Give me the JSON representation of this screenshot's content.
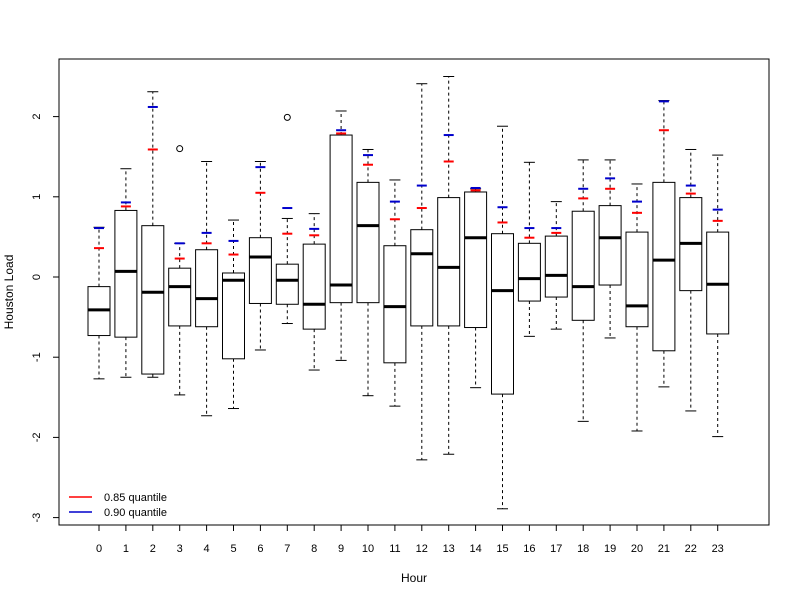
{
  "chart_data": {
    "type": "box",
    "title": "",
    "xlabel": "Hour",
    "ylabel": "Houston Load",
    "ylim": [
      -3.1,
      2.7
    ],
    "yticks": [
      "-3",
      "-2",
      "-1",
      "0",
      "1",
      "2"
    ],
    "ytick_values": [
      -3,
      -2,
      -1,
      0,
      1,
      2
    ],
    "grid": false,
    "legend_position": "bottom-left",
    "colors": {
      "q85": "#ff0000",
      "q90": "#0000cc",
      "box": "#000000"
    },
    "legend": [
      {
        "label": "0.85 quantile",
        "color": "#ff0000"
      },
      {
        "label": "0.90 quantile",
        "color": "#0000cc"
      }
    ],
    "categories": [
      "0",
      "1",
      "2",
      "3",
      "4",
      "5",
      "6",
      "7",
      "8",
      "9",
      "10",
      "11",
      "12",
      "13",
      "14",
      "15",
      "16",
      "17",
      "18",
      "19",
      "20",
      "21",
      "22",
      "23"
    ],
    "boxes": [
      {
        "min": -1.27,
        "q1": -0.73,
        "median": -0.41,
        "q3": -0.12,
        "max": 0.62,
        "outliers": [],
        "q85": 0.36,
        "q90": 0.61
      },
      {
        "min": -1.25,
        "q1": -0.75,
        "median": 0.07,
        "q3": 0.83,
        "max": 1.35,
        "outliers": [],
        "q85": 0.88,
        "q90": 0.93
      },
      {
        "min": -1.25,
        "q1": -1.21,
        "median": -0.19,
        "q3": 0.64,
        "max": 2.31,
        "outliers": [],
        "q85": 1.59,
        "q90": 2.12
      },
      {
        "min": -1.47,
        "q1": -0.61,
        "median": -0.12,
        "q3": 0.11,
        "max": 0.42,
        "outliers": [
          1.6
        ],
        "q85": 0.23,
        "q90": 0.42
      },
      {
        "min": -1.73,
        "q1": -0.62,
        "median": -0.27,
        "q3": 0.34,
        "max": 1.44,
        "outliers": [],
        "q85": 0.42,
        "q90": 0.55
      },
      {
        "min": -1.64,
        "q1": -1.02,
        "median": -0.04,
        "q3": 0.05,
        "max": 0.71,
        "outliers": [],
        "q85": 0.28,
        "q90": 0.45
      },
      {
        "min": -0.91,
        "q1": -0.33,
        "median": 0.25,
        "q3": 0.49,
        "max": 1.44,
        "outliers": [],
        "q85": 1.05,
        "q90": 1.37
      },
      {
        "min": -0.58,
        "q1": -0.34,
        "median": -0.04,
        "q3": 0.16,
        "max": 0.73,
        "outliers": [
          1.99
        ],
        "q85": 0.54,
        "q90": 0.86
      },
      {
        "min": -1.16,
        "q1": -0.65,
        "median": -0.34,
        "q3": 0.41,
        "max": 0.79,
        "outliers": [],
        "q85": 0.52,
        "q90": 0.6
      },
      {
        "min": -1.04,
        "q1": -0.32,
        "median": -0.1,
        "q3": 1.77,
        "max": 2.07,
        "outliers": [],
        "q85": 1.79,
        "q90": 1.83
      },
      {
        "min": -1.48,
        "q1": -0.32,
        "median": 0.64,
        "q3": 1.18,
        "max": 1.59,
        "outliers": [],
        "q85": 1.4,
        "q90": 1.52
      },
      {
        "min": -1.61,
        "q1": -1.07,
        "median": -0.37,
        "q3": 0.39,
        "max": 1.21,
        "outliers": [],
        "q85": 0.72,
        "q90": 0.94
      },
      {
        "min": -2.28,
        "q1": -0.61,
        "median": 0.29,
        "q3": 0.59,
        "max": 2.41,
        "outliers": [],
        "q85": 0.86,
        "q90": 1.14
      },
      {
        "min": -2.21,
        "q1": -0.61,
        "median": 0.12,
        "q3": 0.99,
        "max": 2.5,
        "outliers": [],
        "q85": 1.44,
        "q90": 1.77
      },
      {
        "min": -1.38,
        "q1": -0.63,
        "median": 0.49,
        "q3": 1.06,
        "max": 1.1,
        "outliers": [],
        "q85": 1.08,
        "q90": 1.11
      },
      {
        "min": -2.89,
        "q1": -1.46,
        "median": -0.17,
        "q3": 0.54,
        "max": 1.88,
        "outliers": [],
        "q85": 0.68,
        "q90": 0.87
      },
      {
        "min": -0.74,
        "q1": -0.3,
        "median": -0.02,
        "q3": 0.42,
        "max": 1.43,
        "outliers": [],
        "q85": 0.49,
        "q90": 0.61
      },
      {
        "min": -0.65,
        "q1": -0.25,
        "median": 0.02,
        "q3": 0.51,
        "max": 0.94,
        "outliers": [],
        "q85": 0.55,
        "q90": 0.61
      },
      {
        "min": -1.8,
        "q1": -0.54,
        "median": -0.12,
        "q3": 0.82,
        "max": 1.46,
        "outliers": [],
        "q85": 0.98,
        "q90": 1.1
      },
      {
        "min": -0.76,
        "q1": -0.1,
        "median": 0.49,
        "q3": 0.89,
        "max": 1.46,
        "outliers": [],
        "q85": 1.1,
        "q90": 1.23
      },
      {
        "min": -1.92,
        "q1": -0.62,
        "median": -0.36,
        "q3": 0.56,
        "max": 1.16,
        "outliers": [],
        "q85": 0.8,
        "q90": 0.94
      },
      {
        "min": -1.37,
        "q1": -0.92,
        "median": 0.21,
        "q3": 1.18,
        "max": 2.2,
        "outliers": [],
        "q85": 1.83,
        "q90": 2.19
      },
      {
        "min": -1.67,
        "q1": -0.17,
        "median": 0.42,
        "q3": 0.99,
        "max": 1.59,
        "outliers": [],
        "q85": 1.04,
        "q90": 1.14
      },
      {
        "min": -1.99,
        "q1": -0.71,
        "median": -0.09,
        "q3": 0.56,
        "max": 1.52,
        "outliers": [],
        "q85": 0.7,
        "q90": 0.84
      }
    ]
  }
}
